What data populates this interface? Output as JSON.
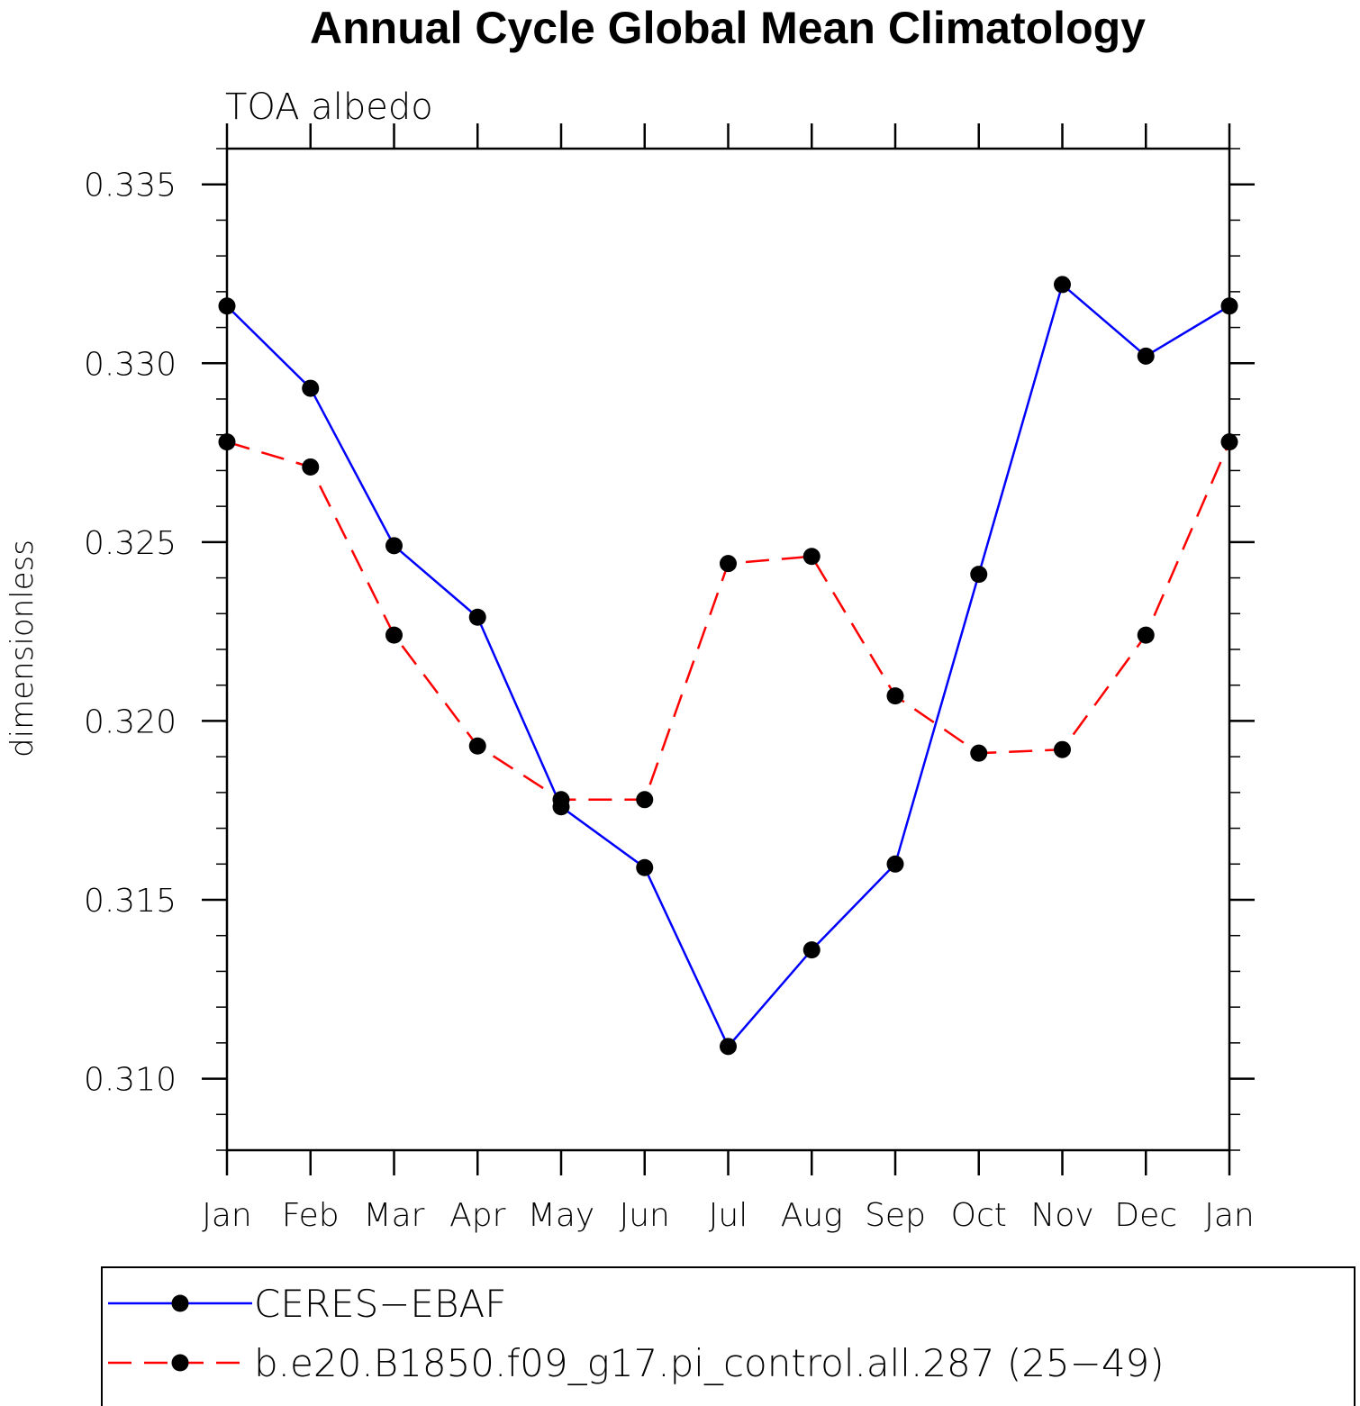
{
  "chart_data": {
    "type": "line",
    "title": "Annual Cycle Global Mean Climatology",
    "subtitle": "TOA albedo",
    "xlabel": "",
    "ylabel": "dimensionless",
    "categories": [
      "Jan",
      "Feb",
      "Mar",
      "Apr",
      "May",
      "Jun",
      "Jul",
      "Aug",
      "Sep",
      "Oct",
      "Nov",
      "Dec",
      "Jan"
    ],
    "ylim": [
      0.308,
      0.336
    ],
    "yticks": [
      0.31,
      0.315,
      0.32,
      0.325,
      0.33,
      0.335
    ],
    "ytick_labels": [
      "0.310",
      "0.315",
      "0.320",
      "0.325",
      "0.330",
      "0.335"
    ],
    "grid": false,
    "legend_position": "bottom",
    "series": [
      {
        "name": "CERES−EBAF",
        "color": "#0000ff",
        "dash": "solid",
        "marker": "filled-circle",
        "values": [
          0.3316,
          0.3293,
          0.3249,
          0.3229,
          0.3176,
          0.3159,
          0.3109,
          0.3136,
          0.316,
          0.3241,
          0.3322,
          0.3302,
          0.3316
        ]
      },
      {
        "name": "b.e20.B1850.f09_g17.pi_control.all.287 (25−49)",
        "color": "#ff0000",
        "dash": "dashed",
        "marker": "filled-circle",
        "values": [
          0.3278,
          0.3271,
          0.3224,
          0.3193,
          0.3178,
          0.3178,
          0.3244,
          0.3246,
          0.3207,
          0.3191,
          0.3192,
          0.3224,
          0.3278
        ]
      }
    ]
  }
}
